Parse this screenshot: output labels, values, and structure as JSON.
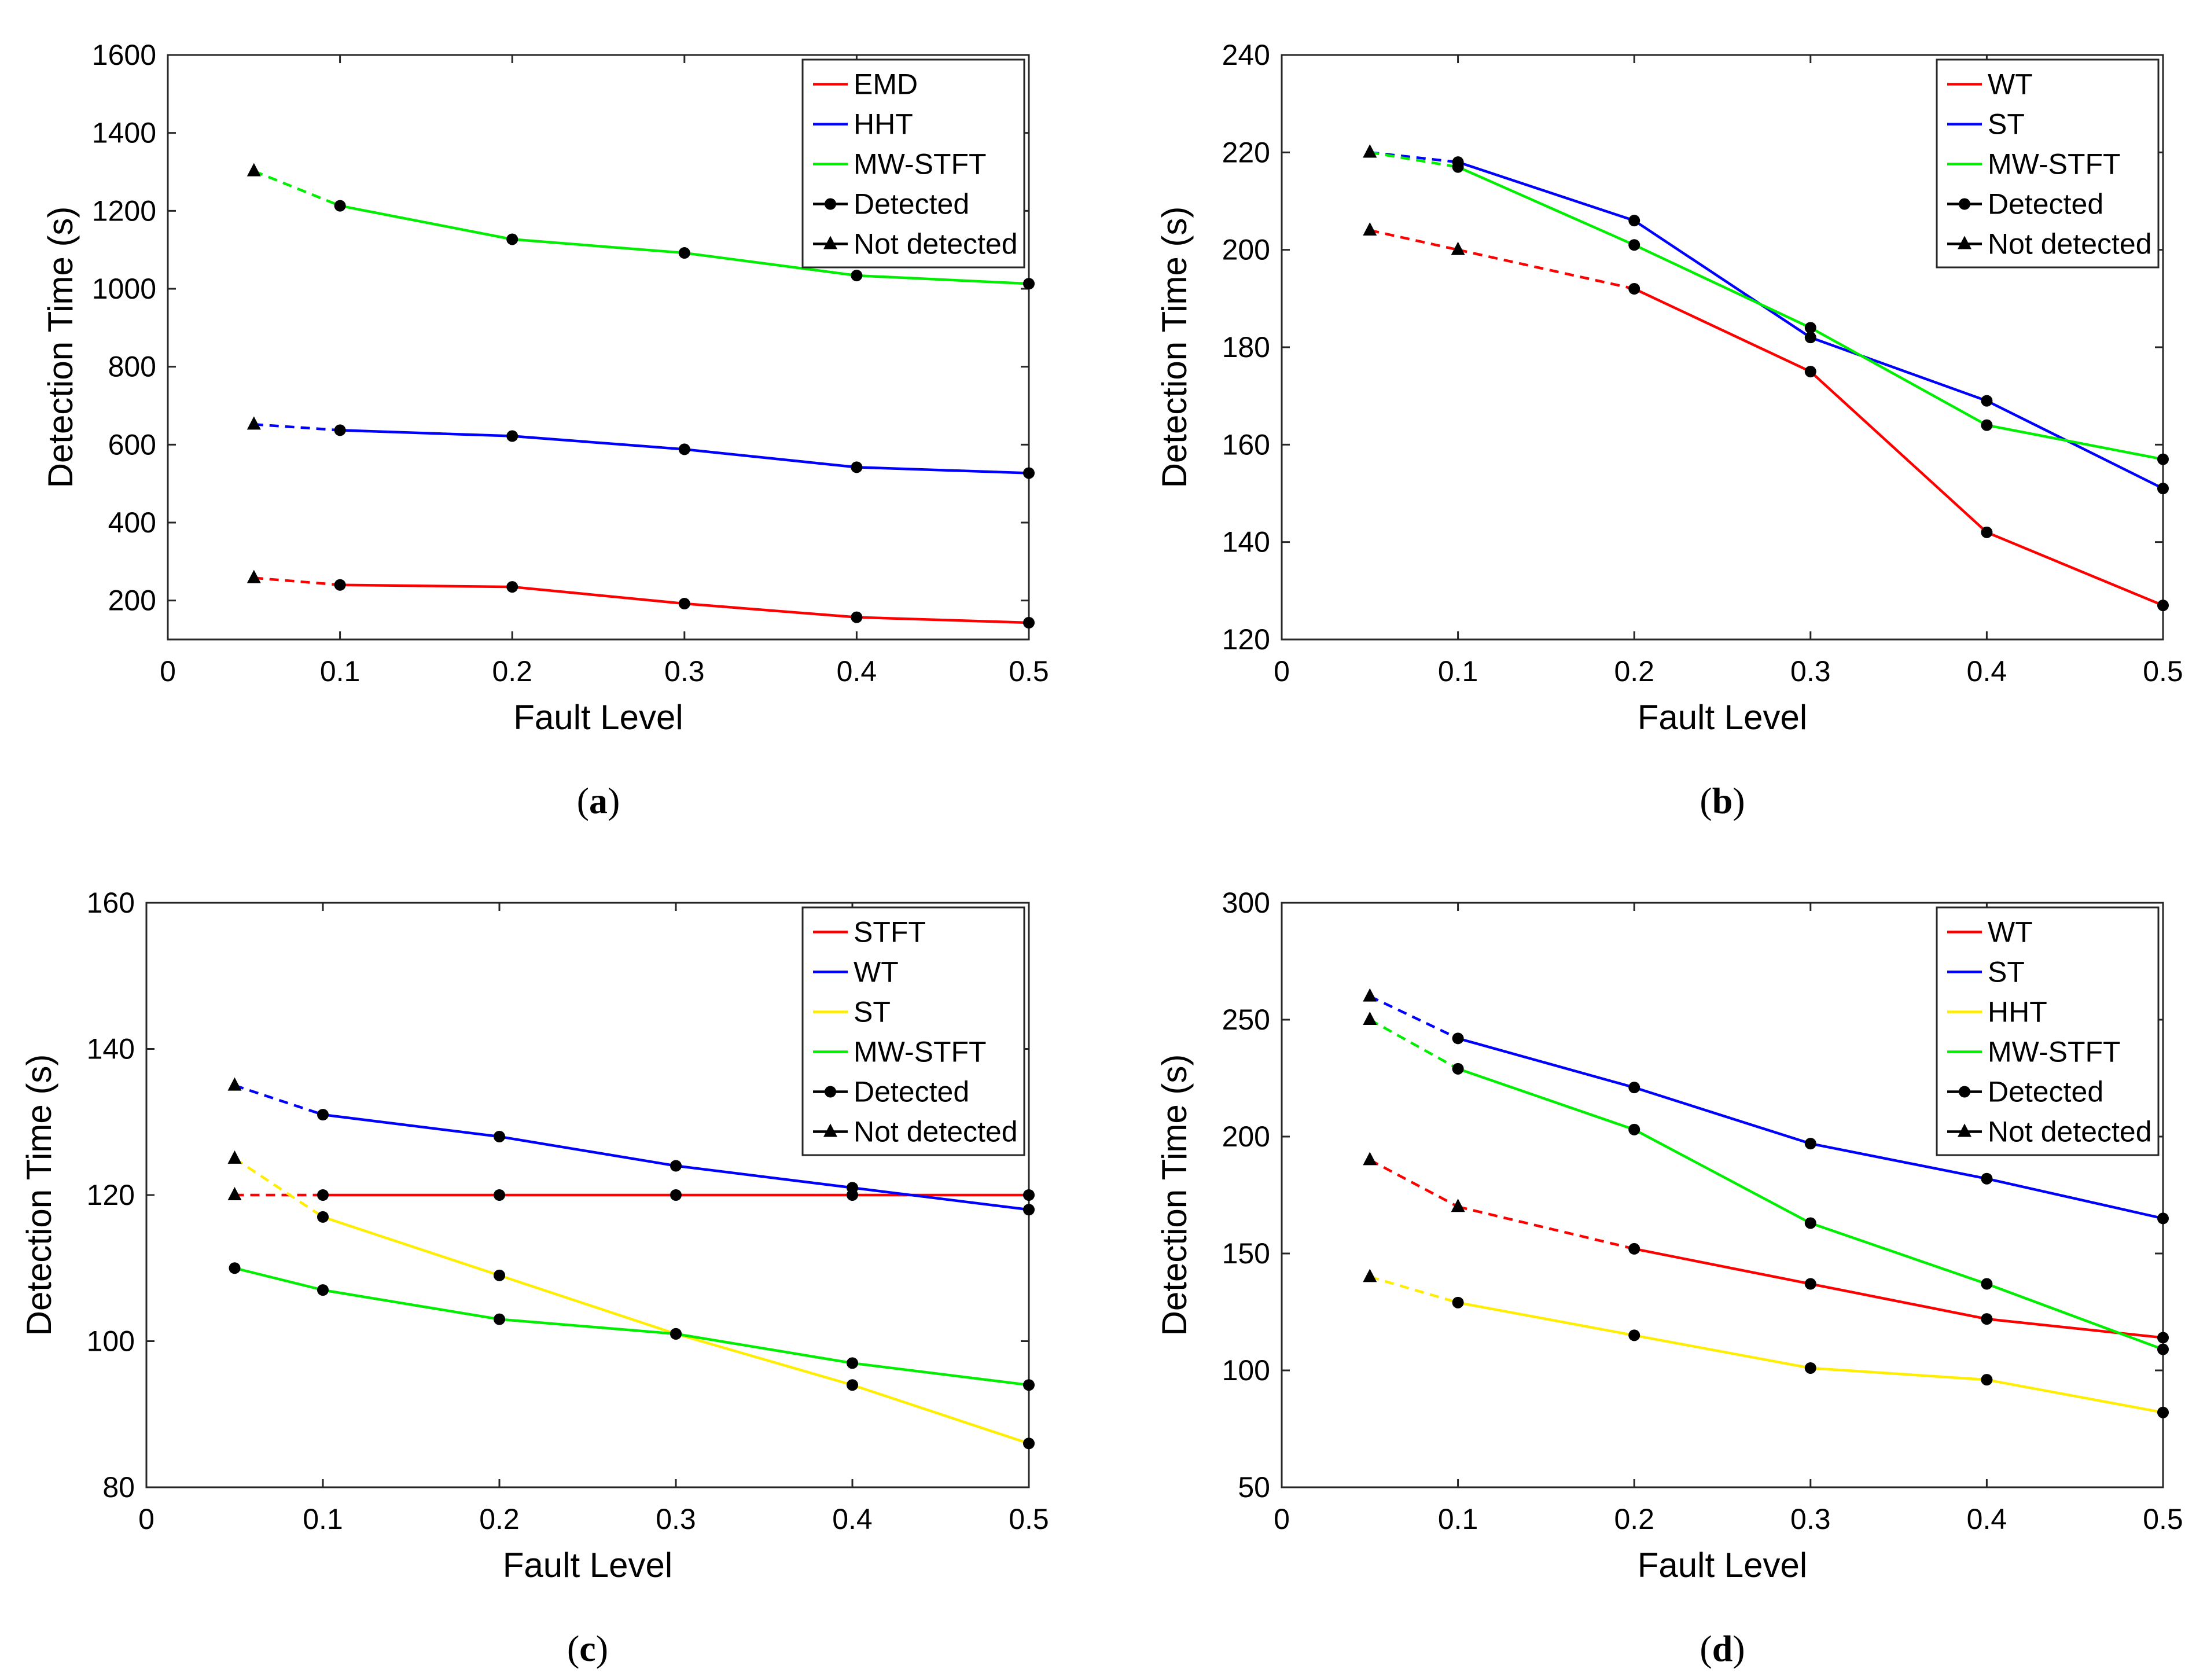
{
  "chart_data": [
    {
      "type": "line",
      "panel": "a",
      "caption_letter": "a",
      "xlabel": "Fault Level",
      "ylabel": "Detection Time (s)",
      "xlim": [
        0,
        0.5
      ],
      "ylim": [
        100,
        1600
      ],
      "xticks": [
        0,
        0.1,
        0.2,
        0.3,
        0.4,
        0.5
      ],
      "yticks": [
        200,
        400,
        600,
        800,
        1000,
        1200,
        1400,
        1600
      ],
      "xtick_labels": [
        "0",
        "0.1",
        "0.2",
        "0.3",
        "0.4",
        "0.5"
      ],
      "ytick_labels": [
        "200",
        "400",
        "600",
        "800",
        "1000",
        "1200",
        "1400",
        "1600"
      ],
      "legend_position": "top-right",
      "legend": [
        "EMD",
        "HHT",
        "MW-STFT",
        "Detected",
        "Not detected"
      ],
      "series": [
        {
          "name": "EMD",
          "color": "#ff0000",
          "x": [
            0.05,
            0.1,
            0.2,
            0.3,
            0.4,
            0.5
          ],
          "values": [
            258,
            240,
            235,
            192,
            157,
            143
          ],
          "not_detected": [
            true,
            false,
            false,
            false,
            false,
            false
          ]
        },
        {
          "name": "HHT",
          "color": "#0000ff",
          "x": [
            0.05,
            0.1,
            0.2,
            0.3,
            0.4,
            0.5
          ],
          "values": [
            652,
            637,
            622,
            588,
            542,
            527
          ],
          "not_detected": [
            true,
            false,
            false,
            false,
            false,
            false
          ]
        },
        {
          "name": "MW-STFT",
          "color": "#00ee00",
          "x": [
            0.05,
            0.1,
            0.2,
            0.3,
            0.4,
            0.5
          ],
          "values": [
            1302,
            1213,
            1127,
            1092,
            1034,
            1013
          ],
          "not_detected": [
            true,
            false,
            false,
            false,
            false,
            false
          ]
        }
      ]
    },
    {
      "type": "line",
      "panel": "b",
      "caption_letter": "b",
      "xlabel": "Fault Level",
      "ylabel": "Detection Time (s)",
      "xlim": [
        0,
        0.5
      ],
      "ylim": [
        120,
        240
      ],
      "xticks": [
        0,
        0.1,
        0.2,
        0.3,
        0.4,
        0.5
      ],
      "yticks": [
        120,
        140,
        160,
        180,
        200,
        220,
        240
      ],
      "xtick_labels": [
        "0",
        "0.1",
        "0.2",
        "0.3",
        "0.4",
        "0.5"
      ],
      "ytick_labels": [
        "120",
        "140",
        "160",
        "180",
        "200",
        "220",
        "240"
      ],
      "legend_position": "top-right",
      "legend": [
        "WT",
        "ST",
        "MW-STFT",
        "Detected",
        "Not detected"
      ],
      "series": [
        {
          "name": "WT",
          "color": "#ff0000",
          "x": [
            0.05,
            0.1,
            0.2,
            0.3,
            0.4,
            0.5
          ],
          "values": [
            204,
            200,
            192,
            175,
            142,
            127
          ],
          "not_detected": [
            true,
            true,
            false,
            false,
            false,
            false
          ]
        },
        {
          "name": "ST",
          "color": "#0000ff",
          "x": [
            0.05,
            0.1,
            0.2,
            0.3,
            0.4,
            0.5
          ],
          "values": [
            220,
            218,
            206,
            182,
            169,
            151
          ],
          "not_detected": [
            true,
            false,
            false,
            false,
            false,
            false
          ]
        },
        {
          "name": "MW-STFT",
          "color": "#00ee00",
          "x": [
            0.05,
            0.1,
            0.2,
            0.3,
            0.4,
            0.5
          ],
          "values": [
            220,
            217,
            201,
            184,
            164,
            157
          ],
          "not_detected": [
            true,
            false,
            false,
            false,
            false,
            false
          ]
        }
      ]
    },
    {
      "type": "line",
      "panel": "c",
      "caption_letter": "c",
      "xlabel": "Fault Level",
      "ylabel": "Detection Time (s)",
      "xlim": [
        0,
        0.5
      ],
      "ylim": [
        80,
        160
      ],
      "xticks": [
        0,
        0.1,
        0.2,
        0.3,
        0.4,
        0.5
      ],
      "yticks": [
        80,
        100,
        120,
        140,
        160
      ],
      "xtick_labels": [
        "0",
        "0.1",
        "0.2",
        "0.3",
        "0.4",
        "0.5"
      ],
      "ytick_labels": [
        "80",
        "100",
        "120",
        "140",
        "160"
      ],
      "legend_position": "top-right",
      "legend": [
        "STFT",
        "WT",
        "ST",
        "MW-STFT",
        "Detected",
        "Not detected"
      ],
      "series": [
        {
          "name": "STFT",
          "color": "#ff0000",
          "x": [
            0.05,
            0.1,
            0.2,
            0.3,
            0.4,
            0.5
          ],
          "values": [
            120,
            120,
            120,
            120,
            120,
            120
          ],
          "not_detected": [
            true,
            false,
            false,
            false,
            false,
            false
          ]
        },
        {
          "name": "WT",
          "color": "#0000ff",
          "x": [
            0.05,
            0.1,
            0.2,
            0.3,
            0.4,
            0.5
          ],
          "values": [
            135,
            131,
            128,
            124,
            121,
            118
          ],
          "not_detected": [
            true,
            false,
            false,
            false,
            false,
            false
          ]
        },
        {
          "name": "ST",
          "color": "#ffee00",
          "x": [
            0.05,
            0.1,
            0.2,
            0.3,
            0.4,
            0.5
          ],
          "values": [
            125,
            117,
            109,
            101,
            94,
            86
          ],
          "not_detected": [
            true,
            false,
            false,
            false,
            false,
            false
          ]
        },
        {
          "name": "MW-STFT",
          "color": "#00ee00",
          "x": [
            0.05,
            0.1,
            0.2,
            0.3,
            0.4,
            0.5
          ],
          "values": [
            110,
            107,
            103,
            101,
            97,
            94
          ],
          "not_detected": [
            false,
            false,
            false,
            false,
            false,
            false
          ]
        }
      ]
    },
    {
      "type": "line",
      "panel": "d",
      "caption_letter": "d",
      "xlabel": "Fault Level",
      "ylabel": "Detection Time (s)",
      "xlim": [
        0,
        0.5
      ],
      "ylim": [
        50,
        300
      ],
      "xticks": [
        0,
        0.1,
        0.2,
        0.3,
        0.4,
        0.5
      ],
      "yticks": [
        50,
        100,
        150,
        200,
        250,
        300
      ],
      "xtick_labels": [
        "0",
        "0.1",
        "0.2",
        "0.3",
        "0.4",
        "0.5"
      ],
      "ytick_labels": [
        "50",
        "100",
        "150",
        "200",
        "250",
        "300"
      ],
      "legend_position": "top-right",
      "legend": [
        "WT",
        "ST",
        "HHT",
        "MW-STFT",
        "Detected",
        "Not detected"
      ],
      "series": [
        {
          "name": "WT",
          "color": "#ff0000",
          "x": [
            0.05,
            0.1,
            0.2,
            0.3,
            0.4,
            0.5
          ],
          "values": [
            190,
            170,
            152,
            137,
            122,
            114
          ],
          "not_detected": [
            true,
            true,
            false,
            false,
            false,
            false
          ]
        },
        {
          "name": "ST",
          "color": "#0000ff",
          "x": [
            0.05,
            0.1,
            0.2,
            0.3,
            0.4,
            0.5
          ],
          "values": [
            260,
            242,
            221,
            197,
            182,
            165
          ],
          "not_detected": [
            true,
            false,
            false,
            false,
            false,
            false
          ]
        },
        {
          "name": "HHT",
          "color": "#ffee00",
          "x": [
            0.05,
            0.1,
            0.2,
            0.3,
            0.4,
            0.5
          ],
          "values": [
            140,
            129,
            115,
            101,
            96,
            82
          ],
          "not_detected": [
            true,
            false,
            false,
            false,
            false,
            false
          ]
        },
        {
          "name": "MW-STFT",
          "color": "#00ee00",
          "x": [
            0.05,
            0.1,
            0.2,
            0.3,
            0.4,
            0.5
          ],
          "values": [
            250,
            229,
            203,
            163,
            137,
            109
          ],
          "not_detected": [
            true,
            false,
            false,
            false,
            false,
            false
          ]
        }
      ]
    }
  ]
}
